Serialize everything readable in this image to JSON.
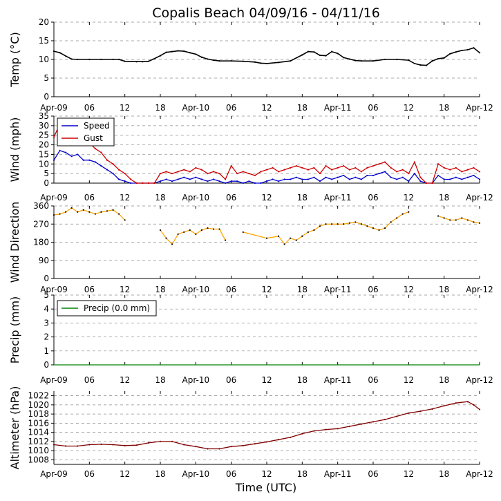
{
  "chart_data": {
    "type": "line",
    "title": "Copalis Beach 04/09/16 - 04/11/16",
    "xlabel": "Time (UTC)",
    "x_ticks": [
      "Apr-09",
      "06",
      "12",
      "18",
      "Apr-10",
      "06",
      "12",
      "18",
      "Apr-11",
      "06",
      "12",
      "18",
      "Apr-12"
    ],
    "x_range_hours": [
      0,
      72
    ],
    "panels": [
      {
        "ylabel": "Temp (°C)",
        "ylim": [
          0,
          20
        ],
        "yticks": [
          0,
          5,
          10,
          15,
          20
        ],
        "series": [
          {
            "name": "Temp",
            "color": "#000000",
            "x": [
              0,
              1,
              2,
              3,
              4,
              6,
              8,
              10,
              11,
              12,
              14,
              15,
              16,
              17,
              18,
              19,
              20,
              21,
              22,
              23,
              24,
              25,
              26,
              27,
              28,
              30,
              32,
              34,
              35,
              36,
              38,
              40,
              42,
              43,
              44,
              45,
              46,
              47,
              48,
              49,
              50,
              51,
              52,
              54,
              56,
              58,
              60,
              61,
              62,
              63,
              64,
              65,
              66,
              67,
              68,
              69,
              70,
              71,
              72
            ],
            "values": [
              12.2,
              11.8,
              10.9,
              10.1,
              10.0,
              10.0,
              10.0,
              10.0,
              10.0,
              9.5,
              9.4,
              9.4,
              9.5,
              10.2,
              11.0,
              11.9,
              12.1,
              12.3,
              12.2,
              11.8,
              11.4,
              10.6,
              10.1,
              9.8,
              9.6,
              9.6,
              9.5,
              9.3,
              9.0,
              8.9,
              9.2,
              9.6,
              11.2,
              12.1,
              12.0,
              11.1,
              11.0,
              12.1,
              11.6,
              10.5,
              10.1,
              9.7,
              9.6,
              9.6,
              10.0,
              10.0,
              9.8,
              8.9,
              8.5,
              8.4,
              9.6,
              10.2,
              10.4,
              11.5,
              12.0,
              12.4,
              12.6,
              13.1,
              11.8
            ]
          }
        ]
      },
      {
        "ylabel": "Wind (mph)",
        "ylim": [
          0,
          35
        ],
        "yticks": [
          0,
          5,
          10,
          15,
          20,
          25,
          30,
          35
        ],
        "legend": "top-left",
        "series": [
          {
            "name": "Speed",
            "color": "#0000cc",
            "x": [
              0,
              1,
              2,
              3,
              4,
              5,
              6,
              7,
              8,
              9,
              10,
              11,
              12,
              13,
              14,
              15,
              16,
              17,
              18,
              19,
              20,
              21,
              22,
              23,
              24,
              25,
              26,
              27,
              28,
              29,
              30,
              31,
              32,
              33,
              34,
              35,
              36,
              37,
              38,
              39,
              40,
              41,
              42,
              43,
              44,
              45,
              46,
              47,
              48,
              49,
              50,
              51,
              52,
              53,
              54,
              55,
              56,
              57,
              58,
              59,
              60,
              61,
              62,
              63,
              64,
              65,
              66,
              67,
              68,
              69,
              70,
              71,
              72
            ],
            "values": [
              12,
              17,
              16,
              14,
              15,
              12,
              12,
              11,
              9,
              7,
              5,
              2,
              1,
              0,
              0,
              0,
              0,
              0,
              1,
              2,
              1,
              2,
              3,
              2,
              3,
              2,
              1,
              2,
              1,
              0,
              1,
              1,
              0,
              1,
              0,
              0,
              1,
              2,
              1,
              2,
              2,
              3,
              2,
              2,
              3,
              1,
              3,
              2,
              3,
              4,
              2,
              3,
              2,
              4,
              4,
              5,
              6,
              3,
              2,
              3,
              1,
              5,
              1,
              0,
              0,
              4,
              2,
              2,
              3,
              2,
              3,
              4,
              2
            ]
          },
          {
            "name": "Gust",
            "color": "#cc0000",
            "x": [
              0,
              1,
              2,
              3,
              4,
              5,
              6,
              7,
              8,
              9,
              10,
              11,
              12,
              13,
              14,
              15,
              16,
              17,
              18,
              19,
              20,
              21,
              22,
              23,
              24,
              25,
              26,
              27,
              28,
              29,
              30,
              31,
              32,
              33,
              34,
              35,
              36,
              37,
              38,
              39,
              40,
              41,
              42,
              43,
              44,
              45,
              46,
              47,
              48,
              49,
              50,
              51,
              52,
              53,
              54,
              55,
              56,
              57,
              58,
              59,
              60,
              61,
              62,
              63,
              64,
              65,
              66,
              67,
              68,
              69,
              70,
              71,
              72
            ],
            "values": [
              24,
              31,
              28,
              25,
              26,
              23,
              21,
              18,
              16,
              12,
              10,
              7,
              5,
              2,
              0,
              0,
              0,
              0,
              5,
              6,
              5,
              6,
              7,
              6,
              8,
              7,
              5,
              6,
              5,
              2,
              9,
              5,
              6,
              5,
              4,
              6,
              7,
              8,
              6,
              7,
              8,
              9,
              8,
              7,
              8,
              5,
              9,
              7,
              8,
              9,
              7,
              8,
              6,
              8,
              9,
              10,
              11,
              8,
              6,
              7,
              5,
              11,
              3,
              0,
              0,
              10,
              8,
              7,
              8,
              6,
              7,
              8,
              6
            ]
          }
        ]
      },
      {
        "ylabel": "Wind Direction",
        "ylim": [
          0,
          360
        ],
        "yticks": [
          0,
          90,
          180,
          270,
          360
        ],
        "series": [
          {
            "name": "Wind Direction",
            "color": "#ffa500",
            "x": [
              0,
              1,
              2,
              3,
              4,
              5,
              6,
              7,
              8,
              9,
              10,
              11,
              12,
              13,
              14,
              18,
              19,
              20,
              21,
              22,
              23,
              24,
              25,
              26,
              27,
              28,
              29,
              30,
              32,
              36,
              38,
              39,
              40,
              41,
              42,
              43,
              44,
              45,
              46,
              47,
              48,
              49,
              50,
              51,
              52,
              53,
              54,
              55,
              56,
              57,
              58,
              59,
              60,
              61,
              65,
              66,
              67,
              68,
              69,
              70,
              71,
              72
            ],
            "values": [
              315,
              320,
              330,
              350,
              330,
              340,
              330,
              320,
              330,
              335,
              340,
              320,
              290,
              null,
              null,
              240,
              200,
              170,
              220,
              230,
              240,
              220,
              240,
              250,
              245,
              245,
              190,
              null,
              230,
              200,
              210,
              170,
              200,
              190,
              210,
              230,
              240,
              260,
              270,
              270,
              270,
              270,
              275,
              280,
              270,
              260,
              250,
              240,
              250,
              280,
              300,
              320,
              330,
              null,
              310,
              300,
              290,
              290,
              300,
              290,
              280,
              275
            ]
          }
        ]
      },
      {
        "ylabel": "Precip (mm)",
        "ylim": [
          0,
          5
        ],
        "yticks": [
          0,
          1,
          2,
          3,
          4,
          5
        ],
        "legend": "top-left",
        "series": [
          {
            "name": "Precip (0.0 mm)",
            "color": "#008000",
            "x": [
              0,
              72
            ],
            "values": [
              0.0,
              0.0
            ]
          }
        ]
      },
      {
        "ylabel": "Altimeter (hPa)",
        "ylim": [
          1007,
          1023
        ],
        "yticks": [
          1008,
          1010,
          1012,
          1014,
          1016,
          1018,
          1020,
          1022
        ],
        "series": [
          {
            "name": "Altimeter",
            "color": "#800000",
            "x": [
              0,
              2,
              4,
              6,
              8,
              10,
              12,
              14,
              16,
              18,
              20,
              22,
              24,
              26,
              28,
              30,
              32,
              34,
              36,
              38,
              40,
              42,
              44,
              46,
              48,
              50,
              52,
              54,
              56,
              58,
              60,
              62,
              64,
              66,
              68,
              70,
              71,
              72
            ],
            "values": [
              1011.3,
              1011.0,
              1011.0,
              1011.3,
              1011.4,
              1011.3,
              1011.1,
              1011.2,
              1011.7,
              1012.0,
              1012.0,
              1011.3,
              1010.9,
              1010.4,
              1010.4,
              1010.9,
              1011.1,
              1011.5,
              1011.9,
              1012.4,
              1012.9,
              1013.7,
              1014.3,
              1014.6,
              1014.8,
              1015.3,
              1015.8,
              1016.3,
              1016.8,
              1017.5,
              1018.2,
              1018.6,
              1019.1,
              1019.8,
              1020.4,
              1020.7,
              1020.0,
              1019.0
            ]
          }
        ]
      }
    ]
  }
}
